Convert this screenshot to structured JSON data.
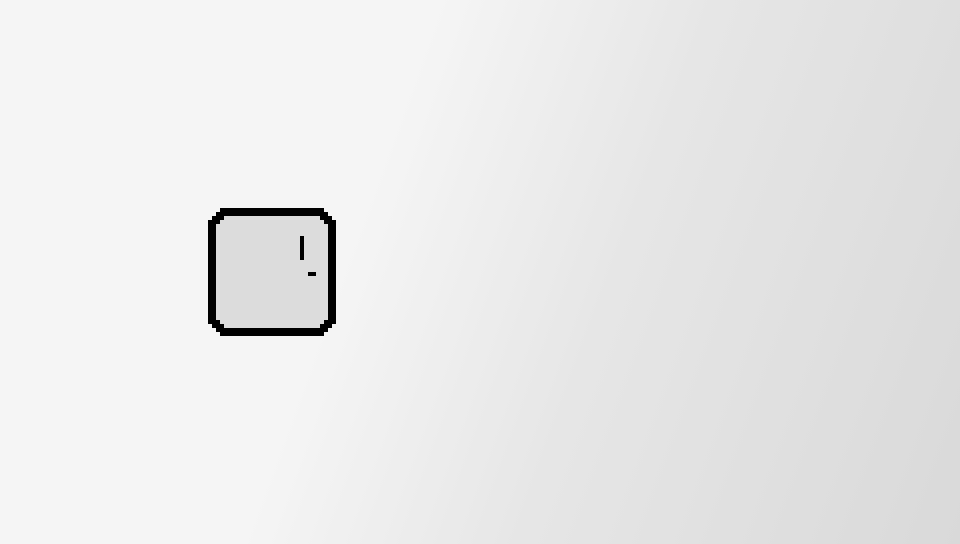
{
  "key": {
    "label": "",
    "glyph_icon": "exclamation-glyph-icon",
    "fill_color": "#dcdcdc",
    "border_color": "#000000"
  },
  "background": {
    "color_light": "#f5f5f5",
    "color_dark": "#d9d9d9"
  }
}
